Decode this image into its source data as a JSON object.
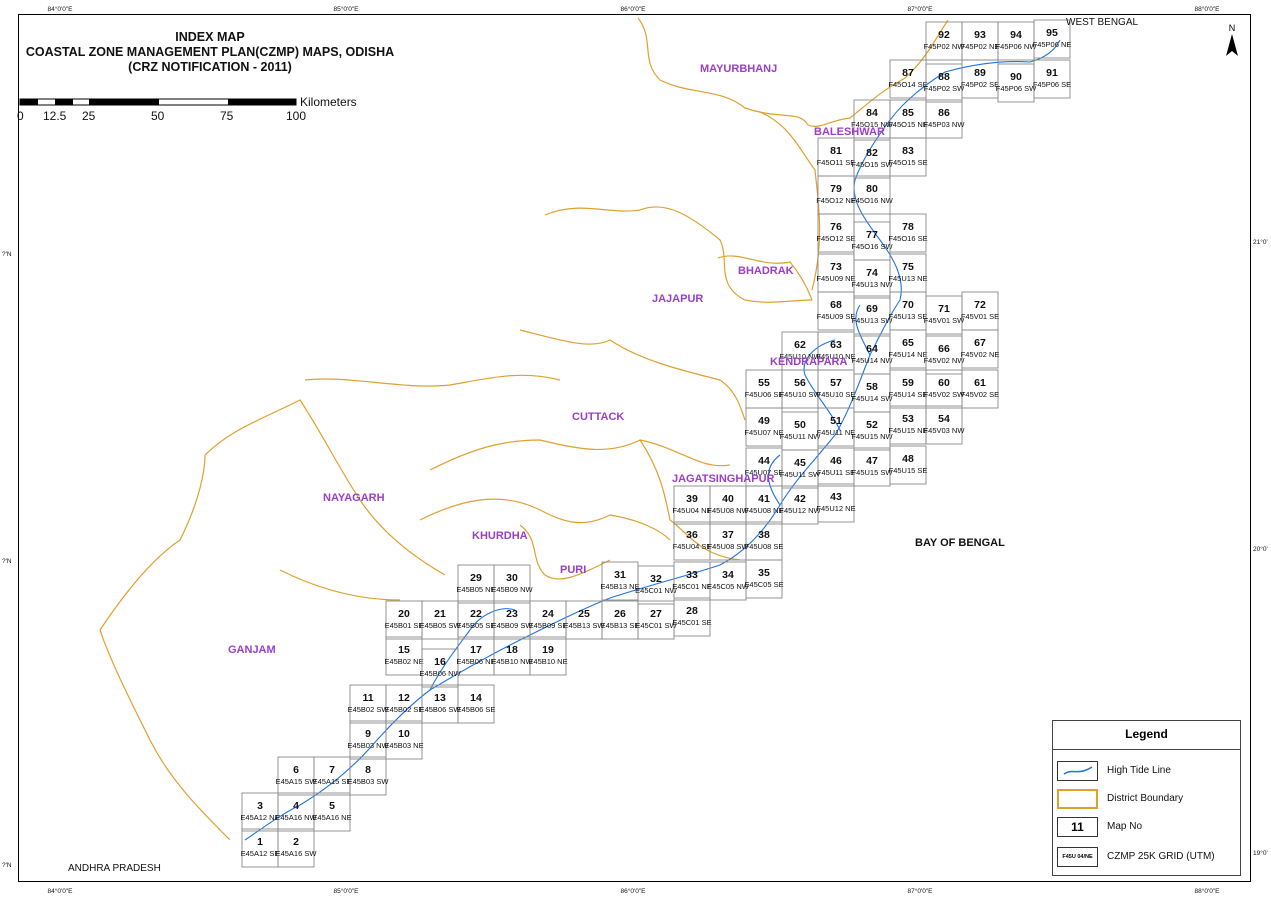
{
  "title": {
    "line1": "INDEX MAP",
    "line2": "COASTAL ZONE MANAGEMENT PLAN(CZMP) MAPS, ODISHA",
    "line3": "(CRZ NOTIFICATION - 2011)"
  },
  "scale_bar": {
    "unit": "Kilometers",
    "labels": [
      "0",
      "12.5",
      "25",
      "50",
      "75",
      "100"
    ]
  },
  "north_arrow": {
    "label": "N",
    "icon": "north-arrow-icon"
  },
  "graticule": {
    "top": [
      "84°0'0\"E",
      "85°0'0\"E",
      "86°0'0\"E",
      "87°0'0\"E",
      "88°0'0\"E"
    ],
    "bottom": [
      "84°0'0\"E",
      "85°0'0\"E",
      "86°0'0\"E",
      "87°0'0\"E",
      "88°0'0\"E"
    ],
    "left": [
      "?'N",
      "?'N",
      "?'N"
    ],
    "right": [
      "21°0'",
      "20°0'",
      "19°0'"
    ]
  },
  "districts": [
    {
      "name": "MAYURBHANJ"
    },
    {
      "name": "BALESHWAR"
    },
    {
      "name": "BHADRAK"
    },
    {
      "name": "JAJAPUR"
    },
    {
      "name": "KENDRAPARA"
    },
    {
      "name": "CUTTACK"
    },
    {
      "name": "JAGATSINGHAPUR"
    },
    {
      "name": "NAYAGARH"
    },
    {
      "name": "KHURDHA"
    },
    {
      "name": "PURI"
    },
    {
      "name": "GANJAM"
    }
  ],
  "other_labels": {
    "west_bengal": "WEST BENGAL",
    "andhra_pradesh": "ANDHRA PRADESH",
    "bay_of_bengal": "BAY OF BENGAL"
  },
  "grid_cells": [
    {
      "no": "1",
      "code": "E45A12 SE"
    },
    {
      "no": "2",
      "code": "E45A16 SW"
    },
    {
      "no": "3",
      "code": "E45A12 NE"
    },
    {
      "no": "4",
      "code": "E45A16 NW"
    },
    {
      "no": "5",
      "code": "E45A16 NE"
    },
    {
      "no": "6",
      "code": "E45A15 SW"
    },
    {
      "no": "7",
      "code": "E45A15 SE"
    },
    {
      "no": "8",
      "code": "E45B03 SW"
    },
    {
      "no": "9",
      "code": "E45B03 NW"
    },
    {
      "no": "10",
      "code": "E45B03 NE"
    },
    {
      "no": "11",
      "code": "E45B02 SW"
    },
    {
      "no": "12",
      "code": "E45B02 SE"
    },
    {
      "no": "13",
      "code": "E45B06 SW"
    },
    {
      "no": "14",
      "code": "E45B06 SE"
    },
    {
      "no": "15",
      "code": "E45B02 NE"
    },
    {
      "no": "16",
      "code": "E45B06 NW"
    },
    {
      "no": "17",
      "code": "E45B06 NE"
    },
    {
      "no": "18",
      "code": "E45B10 NW"
    },
    {
      "no": "19",
      "code": "E45B10 NE"
    },
    {
      "no": "20",
      "code": "E45B01 SE"
    },
    {
      "no": "21",
      "code": "E45B05 SW"
    },
    {
      "no": "22",
      "code": "E45B05 SE"
    },
    {
      "no": "23",
      "code": "E45B09 SW"
    },
    {
      "no": "24",
      "code": "E45B09 SE"
    },
    {
      "no": "25",
      "code": "E45B13 SW"
    },
    {
      "no": "26",
      "code": "E45B13 SE"
    },
    {
      "no": "27",
      "code": "E45C01 SW"
    },
    {
      "no": "28",
      "code": "E45C01 SE"
    },
    {
      "no": "29",
      "code": "E45B05 NE"
    },
    {
      "no": "30",
      "code": "E45B09 NW"
    },
    {
      "no": "31",
      "code": "E45B13 NE"
    },
    {
      "no": "32",
      "code": "E45C01 NW"
    },
    {
      "no": "33",
      "code": "E45C01 NE"
    },
    {
      "no": "34",
      "code": "E45C05 NW"
    },
    {
      "no": "35",
      "code": "E45C05 SE"
    },
    {
      "no": "36",
      "code": "F45U04 SE"
    },
    {
      "no": "37",
      "code": "F45U08 SW"
    },
    {
      "no": "38",
      "code": "F45U08 SE"
    },
    {
      "no": "39",
      "code": "F45U04 NE"
    },
    {
      "no": "40",
      "code": "F45U08 NW"
    },
    {
      "no": "41",
      "code": "F45U08 NE"
    },
    {
      "no": "42",
      "code": "F45U12 NW"
    },
    {
      "no": "43",
      "code": "F45U12 NE"
    },
    {
      "no": "44",
      "code": "F45U07 SE"
    },
    {
      "no": "45",
      "code": "F45U11 SW"
    },
    {
      "no": "46",
      "code": "F45U11 SE"
    },
    {
      "no": "47",
      "code": "F45U15 SW"
    },
    {
      "no": "48",
      "code": "F45U15 SE"
    },
    {
      "no": "49",
      "code": "F45U07 NE"
    },
    {
      "no": "50",
      "code": "F45U11 NW"
    },
    {
      "no": "51",
      "code": "F45U11 NE"
    },
    {
      "no": "52",
      "code": "F45U15 NW"
    },
    {
      "no": "53",
      "code": "F45U15 NE"
    },
    {
      "no": "54",
      "code": "F45V03 NW"
    },
    {
      "no": "55",
      "code": "F45U06 SE"
    },
    {
      "no": "56",
      "code": "F45U10 SW"
    },
    {
      "no": "57",
      "code": "F45U10 SE"
    },
    {
      "no": "58",
      "code": "F45U14 SW"
    },
    {
      "no": "59",
      "code": "F45U14 SE"
    },
    {
      "no": "60",
      "code": "F45V02 SW"
    },
    {
      "no": "61",
      "code": "F45V02 SE"
    },
    {
      "no": "62",
      "code": "F45U10 NW"
    },
    {
      "no": "63",
      "code": "F45U10 NE"
    },
    {
      "no": "64",
      "code": "F45U14 NW"
    },
    {
      "no": "65",
      "code": "F45U14 NE"
    },
    {
      "no": "66",
      "code": "F45V02 NW"
    },
    {
      "no": "67",
      "code": "F45V02 NE"
    },
    {
      "no": "68",
      "code": "F45U09 SE"
    },
    {
      "no": "69",
      "code": "F45U13 SW"
    },
    {
      "no": "70",
      "code": "F45U13 SE"
    },
    {
      "no": "71",
      "code": "F45V01 SW"
    },
    {
      "no": "72",
      "code": "F45V01 SE"
    },
    {
      "no": "73",
      "code": "F45U09 NE"
    },
    {
      "no": "74",
      "code": "F45U13 NW"
    },
    {
      "no": "75",
      "code": "F45U13 NE"
    },
    {
      "no": "76",
      "code": "F45O12 SE"
    },
    {
      "no": "77",
      "code": "F45O16 SW"
    },
    {
      "no": "78",
      "code": "F45O16 SE"
    },
    {
      "no": "79",
      "code": "F45O12 NE"
    },
    {
      "no": "80",
      "code": "F45O16 NW"
    },
    {
      "no": "81",
      "code": "F45O11 SE"
    },
    {
      "no": "82",
      "code": "F45O15 SW"
    },
    {
      "no": "83",
      "code": "F45O15 SE"
    },
    {
      "no": "84",
      "code": "F45O15 NW"
    },
    {
      "no": "85",
      "code": "F45O15 NE"
    },
    {
      "no": "86",
      "code": "F45P03 NW"
    },
    {
      "no": "87",
      "code": "F45O14 SE"
    },
    {
      "no": "88",
      "code": "F45P02 SW"
    },
    {
      "no": "89",
      "code": "F45P02 SE"
    },
    {
      "no": "90",
      "code": "F45P06 SW"
    },
    {
      "no": "91",
      "code": "F45P06 SE"
    },
    {
      "no": "92",
      "code": "F45P02 NW"
    },
    {
      "no": "93",
      "code": "F45P02 NE"
    },
    {
      "no": "94",
      "code": "F45P06 NW"
    },
    {
      "no": "95",
      "code": "F45P06 NE"
    }
  ],
  "legend": {
    "title": "Legend",
    "items": [
      {
        "label": "High Tide Line",
        "icon": "high-tide-line-icon",
        "color": "#1e73e8"
      },
      {
        "label": "District Boundary",
        "icon": "district-boundary-icon",
        "color": "#e0a030"
      },
      {
        "label": "Map No",
        "sample": "11"
      },
      {
        "label": "CZMP 25K GRID  (UTM)",
        "sample": "F45U 04/NE"
      }
    ]
  },
  "colors": {
    "high_tide": "#1e73e8",
    "district_boundary": "#e0a030",
    "grid": "#8a8a8a",
    "district_label": "#9a3fc8"
  }
}
